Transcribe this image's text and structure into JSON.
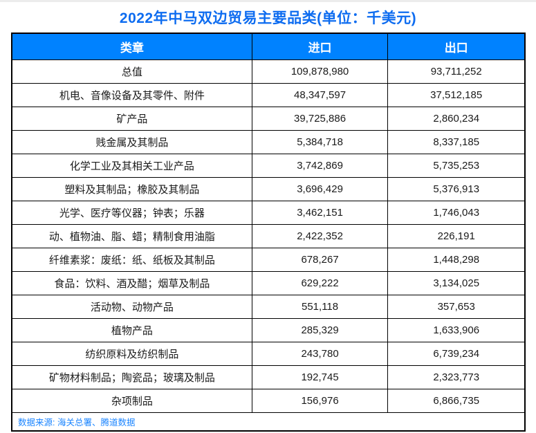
{
  "page": {
    "title": "2022年中马双边贸易主要品类(单位：千美元)",
    "source_note": "数据来源: 海关总署、腾道数据"
  },
  "colors": {
    "title_blue": "#0d6cf0",
    "header_bg": "#0082ff",
    "header_text": "#ffffff",
    "border": "#000000",
    "source_blue": "#1a84ff"
  },
  "table": {
    "columns": [
      "类章",
      "进口",
      "出口"
    ],
    "rows": [
      {
        "category": "总值",
        "import": "109,878,980",
        "export": "93,711,252"
      },
      {
        "category": "机电、音像设备及其零件、附件",
        "import": "48,347,597",
        "export": "37,512,185"
      },
      {
        "category": "矿产品",
        "import": "39,725,886",
        "export": "2,860,234"
      },
      {
        "category": "贱金属及其制品",
        "import": "5,384,718",
        "export": "8,337,185"
      },
      {
        "category": "化学工业及其相关工业产品",
        "import": "3,742,869",
        "export": "5,735,253"
      },
      {
        "category": "塑料及其制品；橡胶及其制品",
        "import": "3,696,429",
        "export": "5,376,913"
      },
      {
        "category": "光学、医疗等仪器；钟表；乐器",
        "import": "3,462,151",
        "export": "1,746,043"
      },
      {
        "category": "动、植物油、脂、蜡；精制食用油脂",
        "import": "2,422,352",
        "export": "226,191"
      },
      {
        "category": "纤维素浆：废纸：纸、纸板及其制品",
        "import": "678,267",
        "export": "1,448,298"
      },
      {
        "category": "食品：饮料、酒及醋；烟草及制品",
        "import": "629,222",
        "export": "3,134,025"
      },
      {
        "category": "活动物、动物产品",
        "import": "551,118",
        "export": "357,653"
      },
      {
        "category": "植物产品",
        "import": "285,329",
        "export": "1,633,906"
      },
      {
        "category": "纺织原料及纺织制品",
        "import": "243,780",
        "export": "6,739,234"
      },
      {
        "category": "矿物材料制品；陶瓷品；玻璃及制品",
        "import": "192,745",
        "export": "2,323,773"
      },
      {
        "category": "杂项制品",
        "import": "156,976",
        "export": "6,866,735"
      }
    ]
  },
  "chart_data": {
    "type": "table",
    "title": "2022年中马双边贸易主要品类(单位：千美元)",
    "unit": "千美元",
    "columns": [
      "类章",
      "进口",
      "出口"
    ],
    "rows": [
      [
        "总值",
        109878980,
        93711252
      ],
      [
        "机电、音像设备及其零件、附件",
        48347597,
        37512185
      ],
      [
        "矿产品",
        39725886,
        2860234
      ],
      [
        "贱金属及其制品",
        5384718,
        8337185
      ],
      [
        "化学工业及其相关工业产品",
        3742869,
        5735253
      ],
      [
        "塑料及其制品；橡胶及其制品",
        3696429,
        5376913
      ],
      [
        "光学、医疗等仪器；钟表；乐器",
        3462151,
        1746043
      ],
      [
        "动、植物油、脂、蜡；精制食用油脂",
        2422352,
        226191
      ],
      [
        "纤维素浆：废纸：纸、纸板及其制品",
        678267,
        1448298
      ],
      [
        "食品：饮料、酒及醋；烟草及制品",
        629222,
        3134025
      ],
      [
        "活动物、动物产品",
        551118,
        357653
      ],
      [
        "植物产品",
        285329,
        1633906
      ],
      [
        "纺织原料及纺织制品",
        243780,
        6739234
      ],
      [
        "矿物材料制品；陶瓷品；玻璃及制品",
        192745,
        2323773
      ],
      [
        "杂项制品",
        156976,
        6866735
      ]
    ],
    "source": "数据来源: 海关总署、腾道数据"
  }
}
